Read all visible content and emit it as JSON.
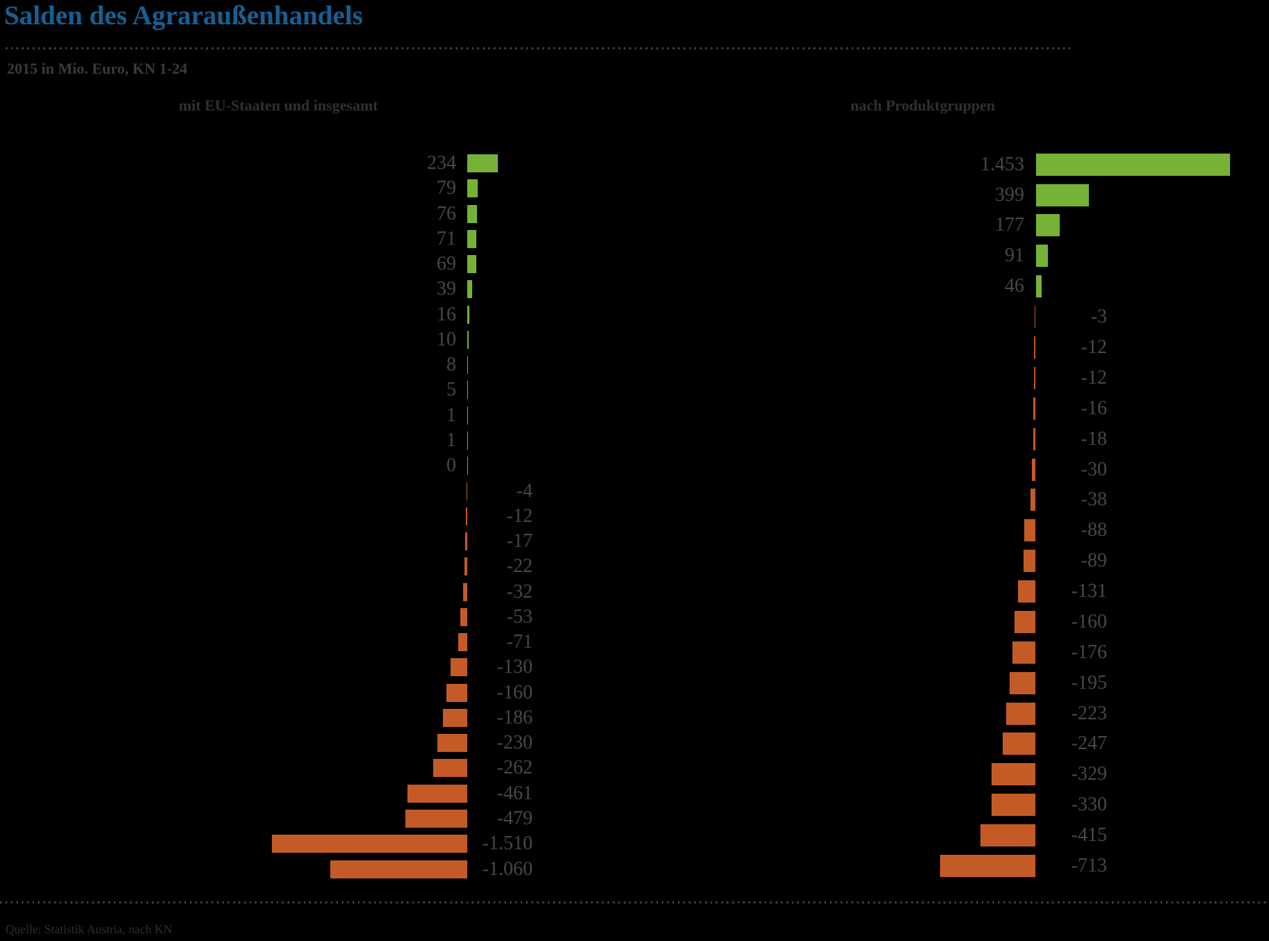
{
  "header": {
    "title": "Salden des Agraraußenhandels",
    "subtitle": "2015 in Mio. Euro, KN 1-24"
  },
  "footer": {
    "source": "Quelle: Statistik Austria, nach KN"
  },
  "colors": {
    "title_blue": "#165f92",
    "bar_positive_green": "#75b235",
    "bar_negative_orange": "#c45b26",
    "value_label_gray": "#474747"
  },
  "chart_data": [
    {
      "type": "bar",
      "orientation": "horizontal",
      "title": "mit EU-Staaten und insgesamt",
      "unit": "Mio. Euro",
      "values": [
        234,
        79,
        76,
        71,
        69,
        39,
        16,
        10,
        8,
        5,
        1,
        1,
        0,
        -4,
        -12,
        -17,
        -22,
        -32,
        -53,
        -71,
        -130,
        -160,
        -186,
        -230,
        -262,
        -461,
        -479,
        -1510,
        -1060
      ],
      "value_labels": [
        "234",
        "79",
        "76",
        "71",
        "69",
        "39",
        "16",
        "10",
        "8",
        "5",
        "1",
        "1",
        "0",
        "-4",
        "-12",
        "-17",
        "-22",
        "-32",
        "-53",
        "-71",
        "-130",
        "-160",
        "-186",
        "-230",
        "-262",
        "-461",
        "-479",
        "-1.510",
        "-1.060"
      ]
    },
    {
      "type": "bar",
      "orientation": "horizontal",
      "title": "nach Produktgruppen",
      "unit": "Mio. Euro",
      "values": [
        1453,
        399,
        177,
        91,
        46,
        -3,
        -12,
        -12,
        -16,
        -18,
        -30,
        -38,
        -88,
        -89,
        -131,
        -160,
        -176,
        -195,
        -223,
        -247,
        -329,
        -330,
        -415,
        -713
      ],
      "value_labels": [
        "1.453",
        "399",
        "177",
        "91",
        "46",
        "-3",
        "-12",
        "-12",
        "-16",
        "-18",
        "-30",
        "-38",
        "-88",
        "-89",
        "-131",
        "-160",
        "-176",
        "-195",
        "-223",
        "-247",
        "-329",
        "-330",
        "-415",
        "-713"
      ]
    }
  ]
}
